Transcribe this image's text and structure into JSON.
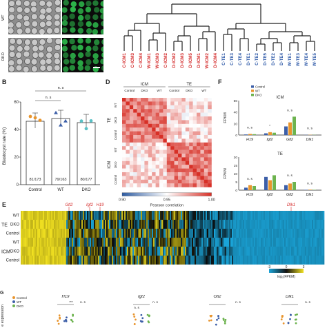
{
  "colors": {
    "red_label": "#d42b2b",
    "blue_label": "#2f5aa8",
    "heat_red": "#d73027",
    "heat_white": "#ffffff",
    "heat_blue": "#2c5aa0",
    "yellow": "#f0e021",
    "cyan": "#1aa4d8",
    "bar_control": "#3d5fa8",
    "bar_wt": "#e8952e",
    "bar_dko": "#6db34f",
    "gfp_green": "#2db54a"
  },
  "panelA": {
    "row_labels": [
      "WT",
      "DKO"
    ]
  },
  "panelTree": {
    "leaf_labels": [
      "C-ICM1",
      "C-ICM3",
      "C-ICM4",
      "W-ICM1",
      "W-ICM3",
      "C-ICM2",
      "D-ICM2",
      "D-ICM3",
      "D-ICM5",
      "D-ICM1",
      "W-ICM2",
      "D-ICM4",
      "C-TE1",
      "C-TE3",
      "C-TE4",
      "D-TE1",
      "C-TE2",
      "D-TE5",
      "D-TE2",
      "D-TE4",
      "W-TE1",
      "W-TE3",
      "W-TE4",
      "W-TE5"
    ],
    "leaf_groups": [
      "icm",
      "icm",
      "icm",
      "icm",
      "icm",
      "icm",
      "icm",
      "icm",
      "icm",
      "icm",
      "icm",
      "icm",
      "te",
      "te",
      "te",
      "te",
      "te",
      "te",
      "te",
      "te",
      "te",
      "te",
      "te",
      "te"
    ]
  },
  "panelB": {
    "letter": "B",
    "ylabel": "Blastocyst rate (%)",
    "ns_label": "n. s",
    "bars": [
      {
        "label": "Control",
        "value": 46,
        "ratio": "81/173",
        "color": "#e8952e"
      },
      {
        "label": "WT",
        "value": 48,
        "ratio": "79/163",
        "color": "#3d5fa8"
      },
      {
        "label": "DKO",
        "value": 45,
        "ratio": "80/177",
        "color": "#59c1c6"
      }
    ],
    "yticks": [
      "0",
      "20",
      "40",
      "60"
    ]
  },
  "panelD": {
    "letter": "D",
    "top_groups": [
      "ICM",
      "TE"
    ],
    "top_sub": [
      "Control",
      "DKO",
      "WT",
      "Control",
      "DKO",
      "WT"
    ],
    "side_groups": [
      "TE",
      "ICM"
    ],
    "side_sub": [
      "WT",
      "DKO",
      "Control",
      "WT",
      "DKO",
      "Control"
    ],
    "colorbar_ticks": [
      "0.90",
      "0.95",
      "1.00"
    ],
    "colorbar_label": "Pearson correlation"
  },
  "panelF": {
    "letter": "F",
    "legend": [
      "Control",
      "WT",
      "DKO"
    ],
    "ylabel": "FPKM",
    "icm": {
      "title": "ICM",
      "genes": [
        "H19",
        "Igf2",
        "Gtl2",
        "Dlk1"
      ],
      "annotations": [
        "n. s",
        "*",
        "n. s",
        "n. s"
      ],
      "yticks": [
        "0",
        "20",
        "40",
        "60"
      ]
    },
    "te": {
      "title": "TE",
      "genes": [
        "H19",
        "Igf2",
        "Gtl2",
        "Dlk1"
      ],
      "annotations": [
        "n. s",
        "",
        "n. s",
        "n. s"
      ],
      "yticks": [
        "0",
        "5",
        "10",
        "15",
        "20"
      ]
    }
  },
  "panelE": {
    "letter": "E",
    "gene_markers": [
      "Gtl2",
      "Igf2",
      "H19",
      "Dlk1"
    ],
    "row_labels": [
      "WT",
      "DKO",
      "Control",
      "WT",
      "DKO",
      "Control"
    ],
    "group_labels": [
      "TE",
      "ICM"
    ],
    "legend_ticks": [
      "-3",
      "0",
      "3"
    ],
    "legend_label": "log₂(FPKM)"
  },
  "panelG": {
    "letter": "G",
    "genes": [
      "H19",
      "Igf2",
      "Gtl2",
      "Dlk1"
    ],
    "legend": [
      "Control",
      "WT",
      "DKO"
    ],
    "ylabel": "e expression",
    "annotations": [
      "***",
      "n. s",
      "n. s",
      "n. s",
      "n. s",
      "n. s"
    ]
  }
}
